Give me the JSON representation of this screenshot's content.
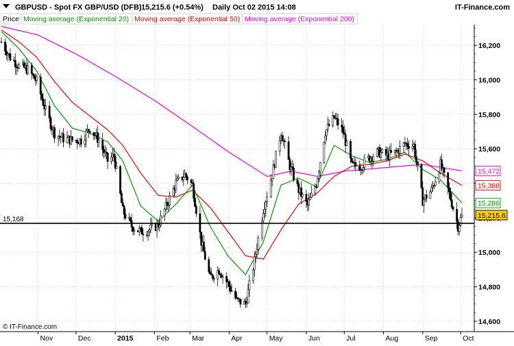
{
  "header": {
    "symbol": "GBPUSD - Spot FX GBP/USD (DFB)",
    "last": "15,215.6 (+0.54%)",
    "period": "Daily  Oct 02 2015 14:08",
    "brand": "IT-Finance.com"
  },
  "legend": [
    {
      "label": "Price",
      "color": "#000000"
    },
    {
      "label": "Moving average (Exponential 20)",
      "color": "#009900"
    },
    {
      "label": "Moving average (Exponential 50)",
      "color": "#ee0000"
    },
    {
      "label": "Moving average (Exponential 200)",
      "color": "#ee00ee"
    }
  ],
  "footer": {
    "copyright": "© IT-Finance.com"
  },
  "chart_data": {
    "type": "candlestick",
    "y_range": [
      14540,
      16320
    ],
    "y_ticks": [
      {
        "value": 14600,
        "label": "14,600"
      },
      {
        "value": 14800,
        "label": "14,800"
      },
      {
        "value": 15000,
        "label": "15,000"
      },
      {
        "value": 15200,
        "label": "15,200"
      },
      {
        "value": 15400,
        "label": "15,400"
      },
      {
        "value": 15600,
        "label": "15,600"
      },
      {
        "value": 15800,
        "label": "15,800"
      },
      {
        "value": 16000,
        "label": "16,000"
      },
      {
        "value": 16200,
        "label": "16,200"
      }
    ],
    "x_start_date": "2014-10-03",
    "x_end_date": "2015-10-02",
    "x_ticks": [
      {
        "date": "2014-11-01",
        "label": "Nov",
        "bold": false
      },
      {
        "date": "2014-12-01",
        "label": "Dec",
        "bold": false
      },
      {
        "date": "2015-01-01",
        "label": "2015",
        "bold": true
      },
      {
        "date": "2015-02-01",
        "label": "Feb",
        "bold": false
      },
      {
        "date": "2015-03-01",
        "label": "Mar",
        "bold": false
      },
      {
        "date": "2015-04-01",
        "label": "Apr",
        "bold": false
      },
      {
        "date": "2015-05-01",
        "label": "May",
        "bold": false
      },
      {
        "date": "2015-06-01",
        "label": "Jun",
        "bold": false
      },
      {
        "date": "2015-07-01",
        "label": "Jul",
        "bold": false
      },
      {
        "date": "2015-08-01",
        "label": "Aug",
        "bold": false
      },
      {
        "date": "2015-09-01",
        "label": "Sep",
        "bold": false
      },
      {
        "date": "2015-10-01",
        "label": "Oct",
        "bold": false
      }
    ],
    "price_path": [
      {
        "date": "2014-10-03",
        "close": 16220
      },
      {
        "date": "2014-10-10",
        "close": 16130
      },
      {
        "date": "2014-10-17",
        "close": 16080
      },
      {
        "date": "2014-10-24",
        "close": 16060
      },
      {
        "date": "2014-10-31",
        "close": 15990
      },
      {
        "date": "2014-11-07",
        "close": 15820
      },
      {
        "date": "2014-11-14",
        "close": 15690
      },
      {
        "date": "2014-11-21",
        "close": 15660
      },
      {
        "date": "2014-11-28",
        "close": 15650
      },
      {
        "date": "2014-12-05",
        "close": 15650
      },
      {
        "date": "2014-12-12",
        "close": 15720
      },
      {
        "date": "2014-12-19",
        "close": 15650
      },
      {
        "date": "2014-12-26",
        "close": 15530
      },
      {
        "date": "2014-12-31",
        "close": 15560
      },
      {
        "date": "2015-01-07",
        "close": 15240
      },
      {
        "date": "2015-01-14",
        "close": 15150
      },
      {
        "date": "2015-01-21",
        "close": 15120
      },
      {
        "date": "2015-01-28",
        "close": 15130
      },
      {
        "date": "2015-02-04",
        "close": 15160
      },
      {
        "date": "2015-02-11",
        "close": 15280
      },
      {
        "date": "2015-02-18",
        "close": 15400
      },
      {
        "date": "2015-02-25",
        "close": 15450
      },
      {
        "date": "2015-03-03",
        "close": 15390
      },
      {
        "date": "2015-03-10",
        "close": 15060
      },
      {
        "date": "2015-03-17",
        "close": 14850
      },
      {
        "date": "2015-03-24",
        "close": 14900
      },
      {
        "date": "2015-03-31",
        "close": 14820
      },
      {
        "date": "2015-04-07",
        "close": 14720
      },
      {
        "date": "2015-04-14",
        "close": 14700
      },
      {
        "date": "2015-04-21",
        "close": 14950
      },
      {
        "date": "2015-04-28",
        "close": 15250
      },
      {
        "date": "2015-05-05",
        "close": 15450
      },
      {
        "date": "2015-05-12",
        "close": 15700
      },
      {
        "date": "2015-05-19",
        "close": 15500
      },
      {
        "date": "2015-05-26",
        "close": 15360
      },
      {
        "date": "2015-06-02",
        "close": 15270
      },
      {
        "date": "2015-06-09",
        "close": 15400
      },
      {
        "date": "2015-06-16",
        "close": 15700
      },
      {
        "date": "2015-06-23",
        "close": 15780
      },
      {
        "date": "2015-06-30",
        "close": 15700
      },
      {
        "date": "2015-07-07",
        "close": 15500
      },
      {
        "date": "2015-07-14",
        "close": 15500
      },
      {
        "date": "2015-07-21",
        "close": 15550
      },
      {
        "date": "2015-07-28",
        "close": 15580
      },
      {
        "date": "2015-08-04",
        "close": 15560
      },
      {
        "date": "2015-08-11",
        "close": 15580
      },
      {
        "date": "2015-08-18",
        "close": 15630
      },
      {
        "date": "2015-08-25",
        "close": 15620
      },
      {
        "date": "2015-09-01",
        "close": 15300
      },
      {
        "date": "2015-09-08",
        "close": 15360
      },
      {
        "date": "2015-09-15",
        "close": 15510
      },
      {
        "date": "2015-09-22",
        "close": 15340
      },
      {
        "date": "2015-09-29",
        "close": 15150
      },
      {
        "date": "2015-10-02",
        "close": 15215.6
      }
    ],
    "ema20_path": [
      {
        "date": "2014-10-03",
        "value": 16280
      },
      {
        "date": "2014-10-17",
        "value": 16180
      },
      {
        "date": "2014-10-31",
        "value": 16050
      },
      {
        "date": "2014-11-14",
        "value": 15850
      },
      {
        "date": "2014-11-28",
        "value": 15720
      },
      {
        "date": "2014-12-12",
        "value": 15690
      },
      {
        "date": "2014-12-26",
        "value": 15640
      },
      {
        "date": "2015-01-07",
        "value": 15530
      },
      {
        "date": "2015-01-21",
        "value": 15270
      },
      {
        "date": "2015-02-04",
        "value": 15180
      },
      {
        "date": "2015-02-18",
        "value": 15280
      },
      {
        "date": "2015-03-03",
        "value": 15390
      },
      {
        "date": "2015-03-17",
        "value": 15150
      },
      {
        "date": "2015-03-31",
        "value": 14980
      },
      {
        "date": "2015-04-14",
        "value": 14870
      },
      {
        "date": "2015-04-28",
        "value": 15060
      },
      {
        "date": "2015-05-12",
        "value": 15390
      },
      {
        "date": "2015-05-26",
        "value": 15430
      },
      {
        "date": "2015-06-09",
        "value": 15380
      },
      {
        "date": "2015-06-23",
        "value": 15620
      },
      {
        "date": "2015-07-07",
        "value": 15560
      },
      {
        "date": "2015-07-21",
        "value": 15520
      },
      {
        "date": "2015-08-04",
        "value": 15540
      },
      {
        "date": "2015-08-18",
        "value": 15580
      },
      {
        "date": "2015-09-01",
        "value": 15480
      },
      {
        "date": "2015-09-15",
        "value": 15420
      },
      {
        "date": "2015-10-02",
        "value": 15286
      }
    ],
    "ema50_path": [
      {
        "date": "2014-10-03",
        "value": 16290
      },
      {
        "date": "2014-10-17",
        "value": 16220
      },
      {
        "date": "2014-10-31",
        "value": 16130
      },
      {
        "date": "2014-11-14",
        "value": 15990
      },
      {
        "date": "2014-11-28",
        "value": 15870
      },
      {
        "date": "2014-12-12",
        "value": 15790
      },
      {
        "date": "2014-12-26",
        "value": 15710
      },
      {
        "date": "2015-01-07",
        "value": 15620
      },
      {
        "date": "2015-01-21",
        "value": 15460
      },
      {
        "date": "2015-02-04",
        "value": 15330
      },
      {
        "date": "2015-02-18",
        "value": 15320
      },
      {
        "date": "2015-03-03",
        "value": 15360
      },
      {
        "date": "2015-03-17",
        "value": 15260
      },
      {
        "date": "2015-03-31",
        "value": 15120
      },
      {
        "date": "2015-04-14",
        "value": 14980
      },
      {
        "date": "2015-04-28",
        "value": 14960
      },
      {
        "date": "2015-05-12",
        "value": 15130
      },
      {
        "date": "2015-05-26",
        "value": 15280
      },
      {
        "date": "2015-06-09",
        "value": 15340
      },
      {
        "date": "2015-06-23",
        "value": 15440
      },
      {
        "date": "2015-07-07",
        "value": 15500
      },
      {
        "date": "2015-07-21",
        "value": 15510
      },
      {
        "date": "2015-08-04",
        "value": 15530
      },
      {
        "date": "2015-08-18",
        "value": 15570
      },
      {
        "date": "2015-09-01",
        "value": 15530
      },
      {
        "date": "2015-09-15",
        "value": 15460
      },
      {
        "date": "2015-10-02",
        "value": 15388
      }
    ],
    "ema200_path": [
      {
        "date": "2014-10-03",
        "value": 16310
      },
      {
        "date": "2014-11-01",
        "value": 16260
      },
      {
        "date": "2014-12-01",
        "value": 16150
      },
      {
        "date": "2015-01-01",
        "value": 16020
      },
      {
        "date": "2015-02-01",
        "value": 15880
      },
      {
        "date": "2015-03-01",
        "value": 15740
      },
      {
        "date": "2015-04-01",
        "value": 15580
      },
      {
        "date": "2015-05-01",
        "value": 15440
      },
      {
        "date": "2015-05-20",
        "value": 15470
      },
      {
        "date": "2015-06-10",
        "value": 15440
      },
      {
        "date": "2015-07-01",
        "value": 15470
      },
      {
        "date": "2015-08-01",
        "value": 15490
      },
      {
        "date": "2015-09-01",
        "value": 15510
      },
      {
        "date": "2015-10-02",
        "value": 15472
      }
    ],
    "reference_line": {
      "value": 15168,
      "label": "15,168"
    },
    "price_tags": [
      {
        "value": 15472,
        "label": "15,472",
        "color": "#ee00ee",
        "bg": "#ffffff"
      },
      {
        "value": 15388,
        "label": "15,388",
        "color": "#ee0000",
        "bg": "#ffffff"
      },
      {
        "value": 15286,
        "label": "15,286",
        "color": "#009900",
        "bg": "#ffffff"
      },
      {
        "value": 15215.6,
        "label": "15,215.6",
        "color": "#000000",
        "bg": "#ffcc00"
      }
    ]
  }
}
